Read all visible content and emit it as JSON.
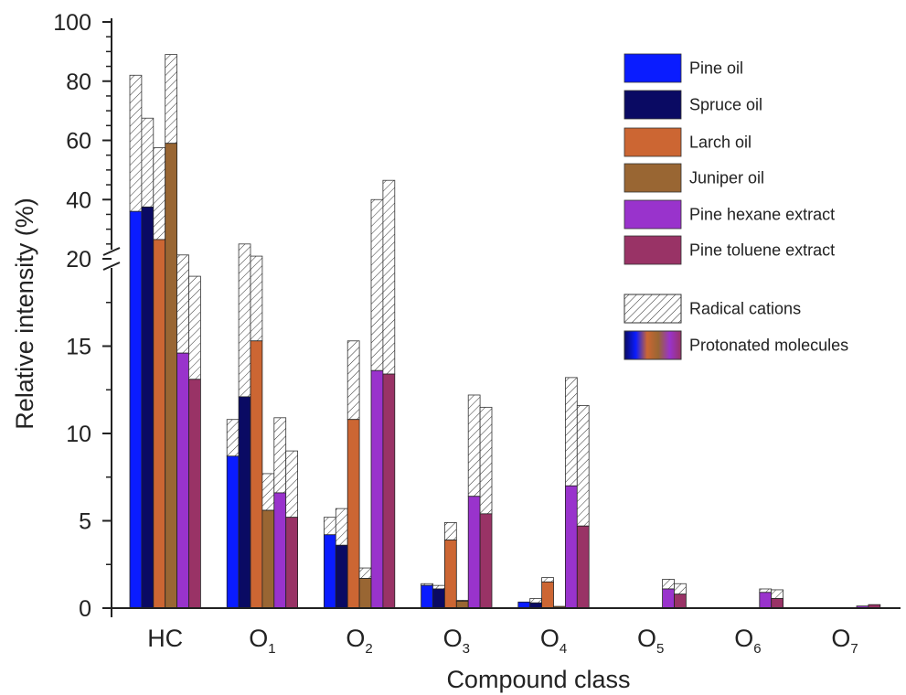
{
  "chart_data": {
    "type": "bar",
    "stacked": true,
    "xlabel": "Compound class",
    "ylabel": "Relative intensity (%)",
    "y_axis_break": true,
    "lower_range": [
      0,
      20
    ],
    "upper_range": [
      20,
      100
    ],
    "lower_ticks": [
      0,
      5,
      10,
      15,
      20
    ],
    "upper_ticks": [
      20,
      40,
      60,
      80,
      100
    ],
    "categories": [
      {
        "base": "HC",
        "sub": ""
      },
      {
        "base": "O",
        "sub": "1"
      },
      {
        "base": "O",
        "sub": "2"
      },
      {
        "base": "O",
        "sub": "3"
      },
      {
        "base": "O",
        "sub": "4"
      },
      {
        "base": "O",
        "sub": "5"
      },
      {
        "base": "O",
        "sub": "6"
      },
      {
        "base": "O",
        "sub": "7"
      }
    ],
    "series": [
      {
        "name": "Pine oil",
        "color": "#0a1cff",
        "protonated": [
          36.0,
          8.7,
          4.2,
          1.3,
          0.35,
          0.02,
          0.02,
          0.0
        ],
        "total": [
          82.0,
          10.8,
          5.2,
          1.4,
          0.35,
          0.02,
          0.02,
          0.0
        ]
      },
      {
        "name": "Spruce oil",
        "color": "#0a0a63",
        "protonated": [
          37.5,
          12.1,
          3.6,
          1.1,
          0.3,
          0.02,
          0.02,
          0.0
        ],
        "total": [
          67.5,
          25.0,
          5.7,
          1.3,
          0.55,
          0.02,
          0.02,
          0.0
        ]
      },
      {
        "name": "Larch oil",
        "color": "#cc6633",
        "protonated": [
          26.5,
          15.3,
          10.8,
          3.9,
          1.5,
          0.02,
          0.02,
          0.0
        ],
        "total": [
          57.5,
          20.9,
          15.3,
          4.9,
          1.75,
          0.02,
          0.02,
          0.0
        ]
      },
      {
        "name": "Juniper oil",
        "color": "#996633",
        "protonated": [
          59.0,
          5.6,
          1.7,
          0.4,
          0.1,
          0.02,
          0.02,
          0.0
        ],
        "total": [
          89.0,
          7.7,
          2.3,
          0.45,
          0.1,
          0.02,
          0.02,
          0.0
        ]
      },
      {
        "name": "Pine hexane extract",
        "color": "#9933cc",
        "protonated": [
          14.6,
          6.6,
          13.6,
          6.4,
          7.0,
          1.1,
          0.9,
          0.12
        ],
        "total": [
          21.3,
          10.9,
          40.0,
          12.2,
          13.2,
          1.65,
          1.1,
          0.12
        ]
      },
      {
        "name": "Pine toluene extract",
        "color": "#993366",
        "protonated": [
          13.1,
          5.2,
          13.4,
          5.4,
          4.7,
          0.8,
          0.55,
          0.2
        ],
        "total": [
          19.0,
          9.0,
          46.5,
          11.5,
          11.6,
          1.4,
          1.05,
          0.2
        ]
      }
    ],
    "legend_extra": [
      {
        "name": "Radical cations",
        "pattern": "hatched"
      },
      {
        "name": "Protonated molecules",
        "pattern": "gradient"
      }
    ],
    "legend_position": "top-right"
  }
}
